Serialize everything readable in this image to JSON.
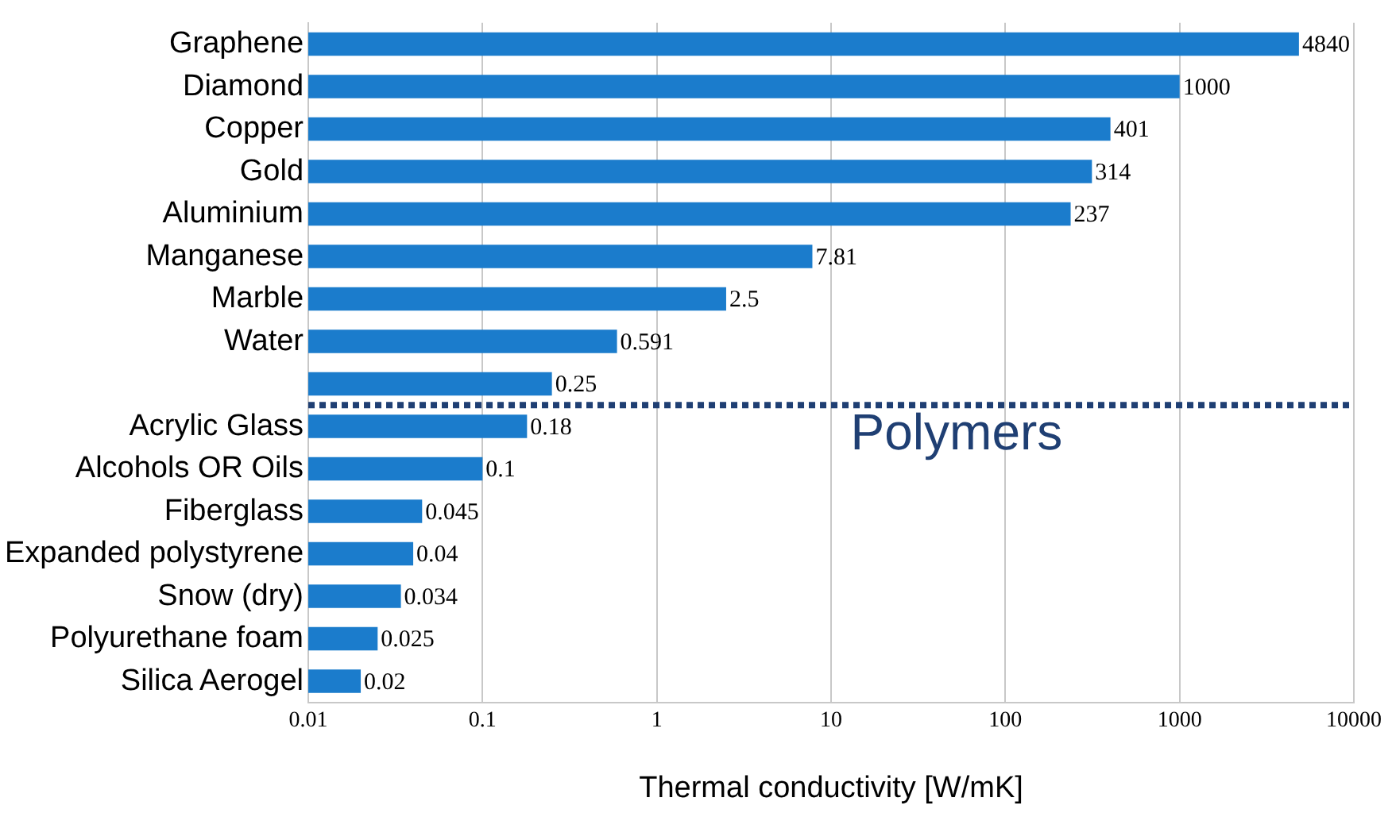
{
  "chart_data": {
    "type": "bar",
    "orientation": "horizontal",
    "xlabel": "Thermal conductivity [W/mK]",
    "categories": [
      "Graphene",
      "Diamond",
      "Copper",
      "Gold",
      "Aluminium",
      "Manganese",
      "Marble",
      "Water",
      null,
      "Acrylic Glass",
      "Alcohols OR Oils",
      "Fiberglass",
      "Expanded polystyrene",
      "Snow (dry)",
      "Polyurethane foam",
      "Silica Aerogel"
    ],
    "values": [
      4840,
      1000,
      401,
      314,
      237,
      7.81,
      2.5,
      0.591,
      0.25,
      0.18,
      0.1,
      0.045,
      0.04,
      0.034,
      0.025,
      0.02
    ],
    "color": "#1b7ccc",
    "log": "x",
    "xlim": [
      0.01,
      10000
    ],
    "xticks": [
      0.01,
      0.1,
      1,
      10,
      100,
      1000,
      10000
    ],
    "grid": "x",
    "data_labels": true,
    "legend": false,
    "ref_lines": [
      {
        "axis": "y",
        "value": "Acrylic Glass",
        "label": "Polymers",
        "color": "#1f3f73",
        "line_style": "dotted"
      }
    ]
  }
}
